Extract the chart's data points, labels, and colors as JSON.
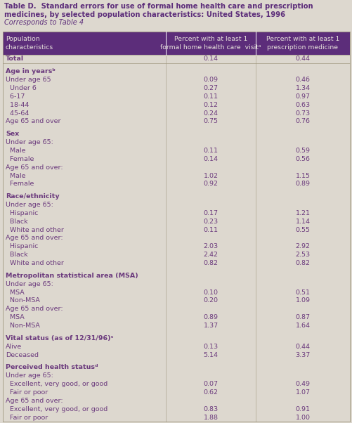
{
  "title_line1": "Table D.  Standard errors for use of formal home health care and prescription",
  "title_line2": "medicines, by selected population characteristics: United States, 1996",
  "title_line3": "Corresponds to Table 4",
  "header_col1": "Population\ncharacteristics",
  "header_col2": "Percent with at least 1\nformal home health care  visitᵃ",
  "header_col3": "Percent with at least 1\nprescription medicine",
  "bg_color": "#ddd8cf",
  "header_bg": "#5c2d7a",
  "header_text_color": "#e8e3dc",
  "title_color": "#5c2d7a",
  "cell_text_color": "#6b3a7d",
  "rows": [
    {
      "label": "Total",
      "col2": "0.14",
      "col3": "0.44",
      "bold": true,
      "indent": 0,
      "spacer": false
    },
    {
      "label": "",
      "col2": "",
      "col3": "",
      "bold": false,
      "indent": 0,
      "spacer": true
    },
    {
      "label": "Age in yearsᵇ",
      "col2": "",
      "col3": "",
      "bold": true,
      "indent": 0,
      "spacer": false
    },
    {
      "label": "Under age 65",
      "col2": "0.09",
      "col3": "0.46",
      "bold": false,
      "indent": 0,
      "spacer": false
    },
    {
      "label": "  Under 6",
      "col2": "0.27",
      "col3": "1.34",
      "bold": false,
      "indent": 1,
      "spacer": false
    },
    {
      "label": "  6-17",
      "col2": "0.11",
      "col3": "0.97",
      "bold": false,
      "indent": 1,
      "spacer": false
    },
    {
      "label": "  18-44",
      "col2": "0.12",
      "col3": "0.63",
      "bold": false,
      "indent": 1,
      "spacer": false
    },
    {
      "label": "  45-64",
      "col2": "0.24",
      "col3": "0.73",
      "bold": false,
      "indent": 1,
      "spacer": false
    },
    {
      "label": "Age 65 and over",
      "col2": "0.75",
      "col3": "0.76",
      "bold": false,
      "indent": 0,
      "spacer": false
    },
    {
      "label": "",
      "col2": "",
      "col3": "",
      "bold": false,
      "indent": 0,
      "spacer": true
    },
    {
      "label": "Sex",
      "col2": "",
      "col3": "",
      "bold": true,
      "indent": 0,
      "spacer": false
    },
    {
      "label": "Under age 65:",
      "col2": "",
      "col3": "",
      "bold": false,
      "indent": 0,
      "spacer": false
    },
    {
      "label": "  Male",
      "col2": "0.11",
      "col3": "0.59",
      "bold": false,
      "indent": 1,
      "spacer": false
    },
    {
      "label": "  Female",
      "col2": "0.14",
      "col3": "0.56",
      "bold": false,
      "indent": 1,
      "spacer": false
    },
    {
      "label": "Age 65 and over:",
      "col2": "",
      "col3": "",
      "bold": false,
      "indent": 0,
      "spacer": false
    },
    {
      "label": "  Male",
      "col2": "1.02",
      "col3": "1.15",
      "bold": false,
      "indent": 1,
      "spacer": false
    },
    {
      "label": "  Female",
      "col2": "0.92",
      "col3": "0.89",
      "bold": false,
      "indent": 1,
      "spacer": false
    },
    {
      "label": "",
      "col2": "",
      "col3": "",
      "bold": false,
      "indent": 0,
      "spacer": true
    },
    {
      "label": "Race/ethnicity",
      "col2": "",
      "col3": "",
      "bold": true,
      "indent": 0,
      "spacer": false
    },
    {
      "label": "Under age 65:",
      "col2": "",
      "col3": "",
      "bold": false,
      "indent": 0,
      "spacer": false
    },
    {
      "label": "  Hispanic",
      "col2": "0.17",
      "col3": "1.21",
      "bold": false,
      "indent": 1,
      "spacer": false
    },
    {
      "label": "  Black",
      "col2": "0.23",
      "col3": "1.14",
      "bold": false,
      "indent": 1,
      "spacer": false
    },
    {
      "label": "  White and other",
      "col2": "0.11",
      "col3": "0.55",
      "bold": false,
      "indent": 1,
      "spacer": false
    },
    {
      "label": "Age 65 and over:",
      "col2": "",
      "col3": "",
      "bold": false,
      "indent": 0,
      "spacer": false
    },
    {
      "label": "  Hispanic",
      "col2": "2.03",
      "col3": "2.92",
      "bold": false,
      "indent": 1,
      "spacer": false
    },
    {
      "label": "  Black",
      "col2": "2.42",
      "col3": "2.53",
      "bold": false,
      "indent": 1,
      "spacer": false
    },
    {
      "label": "  White and other",
      "col2": "0.82",
      "col3": "0.82",
      "bold": false,
      "indent": 1,
      "spacer": false
    },
    {
      "label": "",
      "col2": "",
      "col3": "",
      "bold": false,
      "indent": 0,
      "spacer": true
    },
    {
      "label": "Metropolitan statistical area (MSA)",
      "col2": "",
      "col3": "",
      "bold": true,
      "indent": 0,
      "spacer": false
    },
    {
      "label": "Under age 65:",
      "col2": "",
      "col3": "",
      "bold": false,
      "indent": 0,
      "spacer": false
    },
    {
      "label": "  MSA",
      "col2": "0.10",
      "col3": "0.51",
      "bold": false,
      "indent": 1,
      "spacer": false
    },
    {
      "label": "  Non-MSA",
      "col2": "0.20",
      "col3": "1.09",
      "bold": false,
      "indent": 1,
      "spacer": false
    },
    {
      "label": "Age 65 and over:",
      "col2": "",
      "col3": "",
      "bold": false,
      "indent": 0,
      "spacer": false
    },
    {
      "label": "  MSA",
      "col2": "0.89",
      "col3": "0.87",
      "bold": false,
      "indent": 1,
      "spacer": false
    },
    {
      "label": "  Non-MSA",
      "col2": "1.37",
      "col3": "1.64",
      "bold": false,
      "indent": 1,
      "spacer": false
    },
    {
      "label": "",
      "col2": "",
      "col3": "",
      "bold": false,
      "indent": 0,
      "spacer": true
    },
    {
      "label": "Vital status (as of 12/31/96)ᶜ",
      "col2": "",
      "col3": "",
      "bold": true,
      "indent": 0,
      "spacer": false
    },
    {
      "label": "Alive",
      "col2": "0.13",
      "col3": "0.44",
      "bold": false,
      "indent": 0,
      "spacer": false
    },
    {
      "label": "Deceased",
      "col2": "5.14",
      "col3": "3.37",
      "bold": false,
      "indent": 0,
      "spacer": false
    },
    {
      "label": "",
      "col2": "",
      "col3": "",
      "bold": false,
      "indent": 0,
      "spacer": true
    },
    {
      "label": "Perceived health statusᵈ",
      "col2": "",
      "col3": "",
      "bold": true,
      "indent": 0,
      "spacer": false
    },
    {
      "label": "Under age 65:",
      "col2": "",
      "col3": "",
      "bold": false,
      "indent": 0,
      "spacer": false
    },
    {
      "label": "  Excellent, very good, or good",
      "col2": "0.07",
      "col3": "0.49",
      "bold": false,
      "indent": 1,
      "spacer": false
    },
    {
      "label": "  Fair or poor",
      "col2": "0.62",
      "col3": "1.07",
      "bold": false,
      "indent": 1,
      "spacer": false
    },
    {
      "label": "Age 65 and over:",
      "col2": "",
      "col3": "",
      "bold": false,
      "indent": 0,
      "spacer": false
    },
    {
      "label": "  Excellent, very good, or good",
      "col2": "0.83",
      "col3": "0.91",
      "bold": false,
      "indent": 1,
      "spacer": false
    },
    {
      "label": "  Fair or poor",
      "col2": "1.88",
      "col3": "1.00",
      "bold": false,
      "indent": 1,
      "spacer": false
    }
  ],
  "figsize": [
    5.02,
    6.02
  ],
  "dpi": 100
}
